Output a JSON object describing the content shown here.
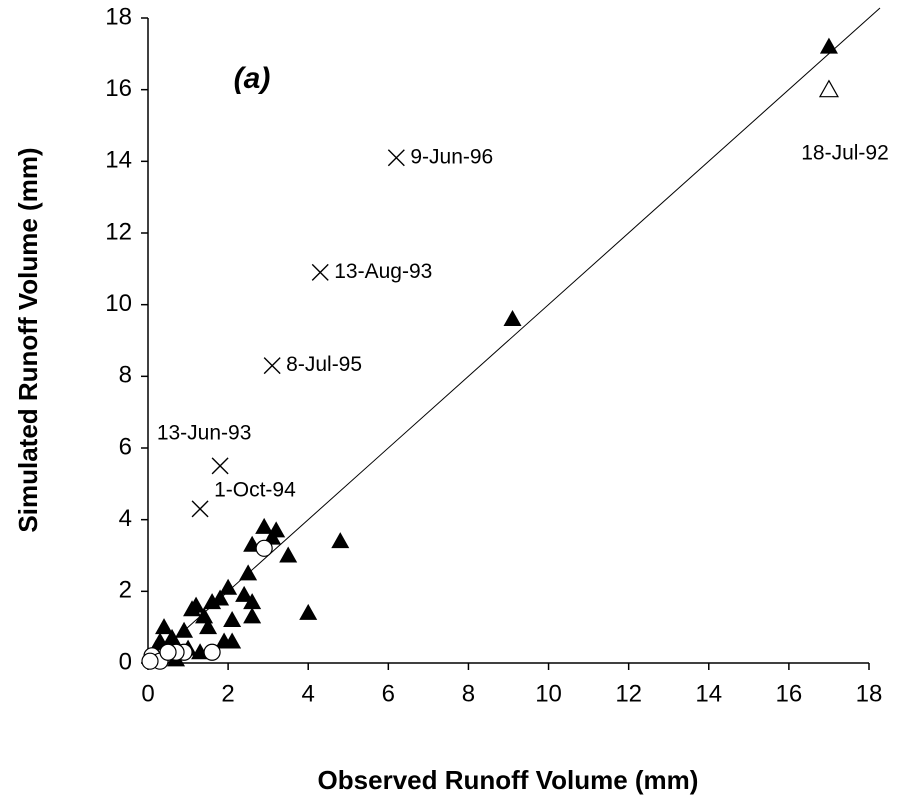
{
  "chart_data": {
    "type": "scatter",
    "x_label": "Observed Runoff Volume (mm)",
    "y_label": "Simulated Runoff Volume (mm)",
    "annotations": [
      "(a)",
      "18-Jul-92"
    ],
    "xlim": [
      0,
      18
    ],
    "ylim": [
      0,
      18
    ],
    "xticks": [
      0,
      2,
      4,
      6,
      8,
      10,
      12,
      14,
      16,
      18
    ],
    "yticks": [
      0,
      2,
      4,
      6,
      8,
      10,
      12,
      14,
      16,
      18
    ],
    "series": [
      {
        "marker": "filled-triangle",
        "color": "#000000",
        "x": [
          17,
          9.1,
          2.9,
          3.2,
          3.1,
          2.6,
          4.8,
          3.5,
          2.5,
          2.4,
          2.6,
          2.6,
          4.0,
          2.0,
          1.8,
          1.6,
          1.4,
          1.5,
          1.2,
          1.1,
          2.1,
          1.9,
          2.1,
          0.9,
          0.6,
          0.4,
          0.3,
          0.2,
          1.3,
          0.5,
          0.7,
          0.1,
          1.0
        ],
        "values": [
          17.2,
          9.6,
          3.8,
          3.7,
          3.5,
          3.3,
          3.4,
          3.0,
          2.5,
          1.9,
          1.7,
          1.3,
          1.4,
          2.1,
          1.8,
          1.7,
          1.3,
          1.0,
          1.6,
          1.5,
          1.2,
          0.6,
          0.6,
          0.9,
          0.7,
          1.0,
          0.6,
          0.4,
          0.3,
          0.2,
          0.1,
          0.1,
          0.4
        ]
      },
      {
        "marker": "open-triangle",
        "color": "#000000",
        "x": [
          17
        ],
        "values": [
          16
        ]
      },
      {
        "marker": "open-circle",
        "color": "#000000",
        "x": [
          2.9,
          1.6,
          0.9,
          0.7,
          0.4,
          0.2,
          0.1,
          0.3,
          0.05,
          0.5
        ],
        "values": [
          3.2,
          0.3,
          0.3,
          0.3,
          0.2,
          0.1,
          0.2,
          0.05,
          0.05,
          0.3
        ]
      },
      {
        "marker": "cross",
        "color": "#000000",
        "x": [
          6.2,
          4.3,
          3.1,
          1.8,
          1.3
        ],
        "values": [
          14.1,
          10.9,
          8.3,
          5.5,
          4.3
        ],
        "labels": [
          "9-Jun-96",
          "13-Aug-93",
          "8-Jul-95",
          "13-Jun-93",
          "1-Oct-94"
        ]
      }
    ]
  }
}
